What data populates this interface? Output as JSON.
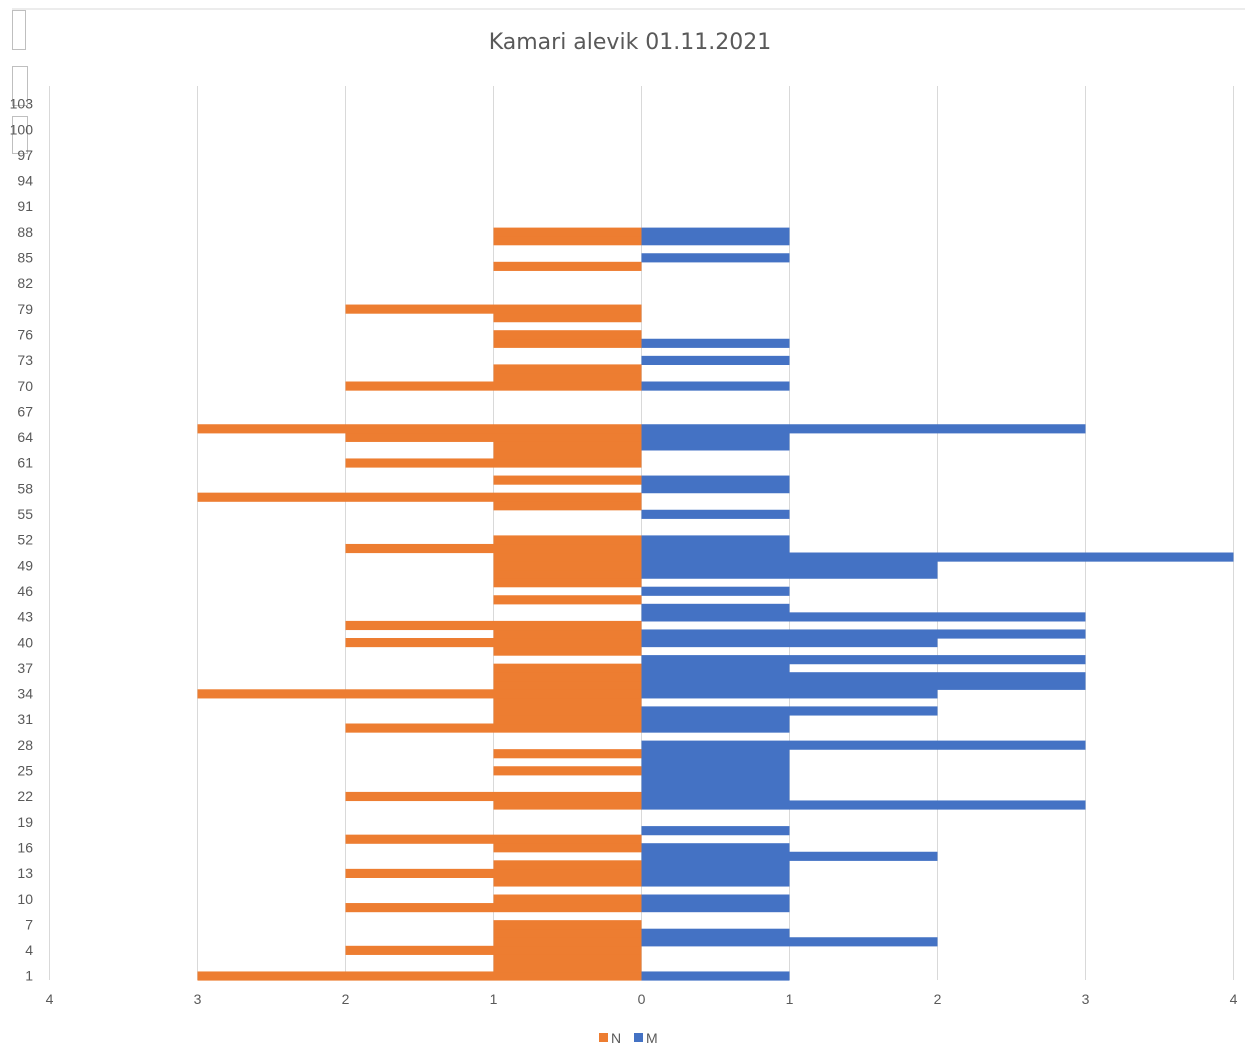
{
  "chart_data": {
    "type": "bar",
    "orientation": "horizontal-butterfly",
    "title": "Kamari alevik  01.11.2021",
    "xlim_left": [
      0,
      4
    ],
    "xlim_right": [
      0,
      4
    ],
    "x_ticks_left": [
      "4",
      "3",
      "2",
      "1",
      "0"
    ],
    "x_ticks_right": [
      "1",
      "2",
      "3",
      "4"
    ],
    "ages_min": 1,
    "ages_max": 100,
    "y_tick_labels": [
      "1",
      "4",
      "7",
      "10",
      "13",
      "16",
      "19",
      "22",
      "25",
      "28",
      "31",
      "34",
      "37",
      "40",
      "43",
      "46",
      "49",
      "52",
      "55",
      "58",
      "61",
      "64",
      "67",
      "70",
      "73",
      "76",
      "79",
      "82",
      "85",
      "88",
      "91",
      "94",
      "97",
      "100",
      "103"
    ],
    "grid": true,
    "legend_position": "bottom",
    "series": [
      {
        "name": "N",
        "color": "#ED7D31",
        "side": "left",
        "points": [
          {
            "age": 1,
            "value": 3
          },
          {
            "age": 2,
            "value": 1
          },
          {
            "age": 3,
            "value": 1
          },
          {
            "age": 4,
            "value": 2
          },
          {
            "age": 5,
            "value": 1
          },
          {
            "age": 6,
            "value": 1
          },
          {
            "age": 7,
            "value": 1
          },
          {
            "age": 9,
            "value": 2
          },
          {
            "age": 10,
            "value": 1
          },
          {
            "age": 12,
            "value": 1
          },
          {
            "age": 13,
            "value": 2
          },
          {
            "age": 14,
            "value": 1
          },
          {
            "age": 16,
            "value": 1
          },
          {
            "age": 17,
            "value": 2
          },
          {
            "age": 21,
            "value": 1
          },
          {
            "age": 22,
            "value": 2
          },
          {
            "age": 25,
            "value": 1
          },
          {
            "age": 27,
            "value": 1
          },
          {
            "age": 30,
            "value": 2
          },
          {
            "age": 31,
            "value": 1
          },
          {
            "age": 32,
            "value": 1
          },
          {
            "age": 33,
            "value": 1
          },
          {
            "age": 34,
            "value": 3
          },
          {
            "age": 35,
            "value": 1
          },
          {
            "age": 36,
            "value": 1
          },
          {
            "age": 37,
            "value": 1
          },
          {
            "age": 39,
            "value": 1
          },
          {
            "age": 40,
            "value": 2
          },
          {
            "age": 41,
            "value": 1
          },
          {
            "age": 42,
            "value": 2
          },
          {
            "age": 45,
            "value": 1
          },
          {
            "age": 47,
            "value": 1
          },
          {
            "age": 48,
            "value": 1
          },
          {
            "age": 49,
            "value": 1
          },
          {
            "age": 50,
            "value": 1
          },
          {
            "age": 51,
            "value": 2
          },
          {
            "age": 52,
            "value": 1
          },
          {
            "age": 56,
            "value": 1
          },
          {
            "age": 57,
            "value": 3
          },
          {
            "age": 59,
            "value": 1
          },
          {
            "age": 61,
            "value": 2
          },
          {
            "age": 62,
            "value": 1
          },
          {
            "age": 63,
            "value": 1
          },
          {
            "age": 64,
            "value": 2
          },
          {
            "age": 65,
            "value": 3
          },
          {
            "age": 70,
            "value": 2
          },
          {
            "age": 71,
            "value": 1
          },
          {
            "age": 72,
            "value": 1
          },
          {
            "age": 75,
            "value": 1
          },
          {
            "age": 76,
            "value": 1
          },
          {
            "age": 78,
            "value": 1
          },
          {
            "age": 79,
            "value": 2
          },
          {
            "age": 84,
            "value": 1
          },
          {
            "age": 87,
            "value": 1
          },
          {
            "age": 88,
            "value": 1
          }
        ]
      },
      {
        "name": "M",
        "color": "#4472C4",
        "side": "right",
        "points": [
          {
            "age": 1,
            "value": 1
          },
          {
            "age": 5,
            "value": 2
          },
          {
            "age": 6,
            "value": 1
          },
          {
            "age": 9,
            "value": 1
          },
          {
            "age": 10,
            "value": 1
          },
          {
            "age": 12,
            "value": 1
          },
          {
            "age": 13,
            "value": 1
          },
          {
            "age": 14,
            "value": 1
          },
          {
            "age": 15,
            "value": 2
          },
          {
            "age": 16,
            "value": 1
          },
          {
            "age": 18,
            "value": 1
          },
          {
            "age": 21,
            "value": 3
          },
          {
            "age": 22,
            "value": 1
          },
          {
            "age": 23,
            "value": 1
          },
          {
            "age": 24,
            "value": 1
          },
          {
            "age": 25,
            "value": 1
          },
          {
            "age": 26,
            "value": 1
          },
          {
            "age": 27,
            "value": 1
          },
          {
            "age": 28,
            "value": 3
          },
          {
            "age": 30,
            "value": 1
          },
          {
            "age": 31,
            "value": 1
          },
          {
            "age": 32,
            "value": 2
          },
          {
            "age": 34,
            "value": 2
          },
          {
            "age": 35,
            "value": 3
          },
          {
            "age": 36,
            "value": 3
          },
          {
            "age": 37,
            "value": 1
          },
          {
            "age": 38,
            "value": 3
          },
          {
            "age": 40,
            "value": 2
          },
          {
            "age": 41,
            "value": 3
          },
          {
            "age": 43,
            "value": 3
          },
          {
            "age": 44,
            "value": 1
          },
          {
            "age": 46,
            "value": 1
          },
          {
            "age": 48,
            "value": 2
          },
          {
            "age": 49,
            "value": 2
          },
          {
            "age": 50,
            "value": 4
          },
          {
            "age": 51,
            "value": 1
          },
          {
            "age": 52,
            "value": 1
          },
          {
            "age": 55,
            "value": 1
          },
          {
            "age": 58,
            "value": 1
          },
          {
            "age": 59,
            "value": 1
          },
          {
            "age": 63,
            "value": 1
          },
          {
            "age": 64,
            "value": 1
          },
          {
            "age": 65,
            "value": 3
          },
          {
            "age": 70,
            "value": 1
          },
          {
            "age": 73,
            "value": 1
          },
          {
            "age": 75,
            "value": 1
          },
          {
            "age": 85,
            "value": 1
          },
          {
            "age": 87,
            "value": 1
          },
          {
            "age": 88,
            "value": 1
          }
        ]
      }
    ]
  }
}
